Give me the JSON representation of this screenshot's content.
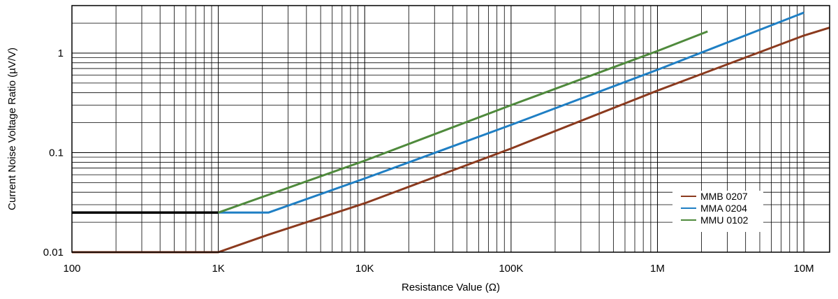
{
  "chart_data": {
    "type": "line",
    "title": "",
    "xlabel": "Resistance Value (Ω)",
    "ylabel": "Current Noise Voltage Ratio (µV/V)",
    "x_scale": "log",
    "y_scale": "log",
    "xlim": [
      100,
      15000000
    ],
    "ylim": [
      0.01,
      3
    ],
    "x_ticks": [
      {
        "value": 100,
        "label": "100"
      },
      {
        "value": 1000,
        "label": "1K"
      },
      {
        "value": 10000,
        "label": "10K"
      },
      {
        "value": 100000,
        "label": "100K"
      },
      {
        "value": 1000000,
        "label": "1M"
      },
      {
        "value": 10000000,
        "label": "10M"
      }
    ],
    "y_ticks": [
      {
        "value": 0.01,
        "label": "0.01"
      },
      {
        "value": 0.1,
        "label": "0.1"
      },
      {
        "value": 1,
        "label": "1"
      }
    ],
    "grid": true,
    "legend_position": "bottom-right",
    "series": [
      {
        "name": "MMB 0207",
        "color": "#8b3a1e",
        "points": [
          [
            100,
            0.01
          ],
          [
            1000,
            0.01
          ],
          [
            2200,
            0.015
          ],
          [
            10000,
            0.031
          ],
          [
            100000,
            0.11
          ],
          [
            1000000,
            0.42
          ],
          [
            10000000,
            1.5
          ],
          [
            15000000,
            1.8
          ]
        ]
      },
      {
        "name": "MMA 0204",
        "color": "#1f7fc4",
        "points": [
          [
            1000,
            0.025
          ],
          [
            2200,
            0.025
          ],
          [
            10000,
            0.055
          ],
          [
            100000,
            0.19
          ],
          [
            1000000,
            0.68
          ],
          [
            10000000,
            2.55
          ]
        ]
      },
      {
        "name": "MMU 0102",
        "color": "#4f8a3c",
        "points": [
          [
            1000,
            0.025
          ],
          [
            10000,
            0.083
          ],
          [
            100000,
            0.3
          ],
          [
            1000000,
            1.05
          ],
          [
            2200000,
            1.65
          ]
        ]
      }
    ],
    "reference_line": {
      "color": "#000000",
      "points": [
        [
          100,
          0.025
        ],
        [
          1000,
          0.025
        ]
      ]
    }
  }
}
